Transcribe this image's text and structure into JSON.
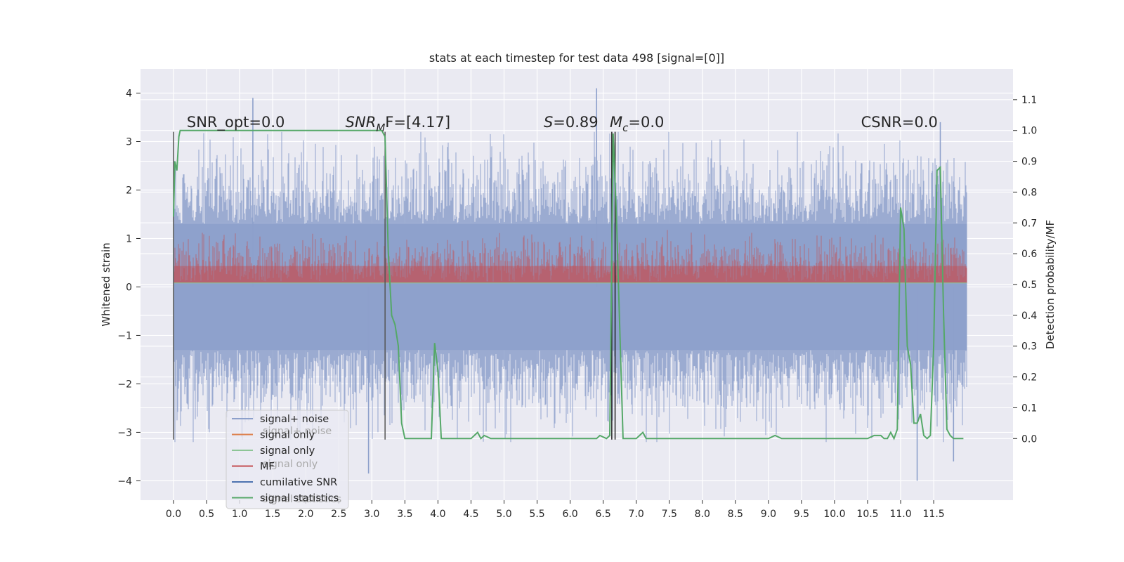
{
  "chart_data": {
    "type": "line",
    "title": "stats at each timestep for test data 498 [signal=[0]]",
    "ylabel": "Whitened strain",
    "y2label": "Detection probability/MF",
    "xlim": [
      -0.5,
      12.7
    ],
    "ylim": [
      -4.4,
      4.5
    ],
    "y2lim": [
      -0.2,
      1.2
    ],
    "x_ticks": [
      0.0,
      0.5,
      1.0,
      1.5,
      2.0,
      2.5,
      3.0,
      3.5,
      4.0,
      4.5,
      5.0,
      5.5,
      6.0,
      6.5,
      7.0,
      7.5,
      8.0,
      8.5,
      9.0,
      9.5,
      10.0,
      10.5,
      11.0,
      11.5
    ],
    "x_tick_labels": [
      "0.0",
      "0.5",
      "1.0",
      "1.5",
      "2.0",
      "2.5",
      "3.0",
      "3.5",
      "4.0",
      "4.5",
      "5.0",
      "5.5",
      "6.0",
      "6.5",
      "7.0",
      "7.5",
      "8.0",
      "8.5",
      "9.0",
      "9.5",
      "10.0",
      "10.5",
      "11.0",
      "11.5"
    ],
    "y_ticks": [
      -4,
      -3,
      -2,
      -1,
      0,
      1,
      2,
      3,
      4
    ],
    "y_tick_labels": [
      "−4",
      "−3",
      "−2",
      "−1",
      "0",
      "1",
      "2",
      "3",
      "4"
    ],
    "y2_ticks": [
      0.0,
      0.1,
      0.2,
      0.3,
      0.4,
      0.5,
      0.6,
      0.7,
      0.8,
      0.9,
      1.0,
      1.1
    ],
    "y2_tick_labels": [
      "0.0",
      "0.1",
      "0.2",
      "0.3",
      "0.4",
      "0.5",
      "0.6",
      "0.7",
      "0.8",
      "0.9",
      "1.0",
      "1.1"
    ],
    "grid": true,
    "legend_placement": "lower-left",
    "legend": [
      {
        "label": "signal+ noise",
        "color": "#8da0cb"
      },
      {
        "label": "signal only",
        "color": "#dd8452"
      },
      {
        "label": "signal only",
        "color": "#8dc596"
      },
      {
        "label": "MF",
        "color": "#c44e52"
      },
      {
        "label": "cumilative SNR",
        "color": "#4c72b0"
      },
      {
        "label": "signal statistics",
        "color": "#55a868"
      }
    ],
    "legend_ghost_labels": [
      "signal+ noise",
      "signal only",
      "signal statistics"
    ],
    "annotations": [
      {
        "text": "SNR_opt=0.0",
        "x": 0.2,
        "y": 3.3
      },
      {
        "text_main": "SNR",
        "text_sub": "M",
        "text_rest": "F=[4.17]",
        "x": 2.6,
        "y": 3.3
      },
      {
        "text_main": "S",
        "text_rest": "=0.89",
        "x": 5.6,
        "y": 3.3
      },
      {
        "text_main": "M",
        "text_sub": "c",
        "text_rest": "=0.0",
        "x": 6.6,
        "y": 3.3
      },
      {
        "text": "CSNR=0.0",
        "x": 10.4,
        "y": 3.3
      }
    ],
    "vertical_lines": [
      {
        "x": 0.0,
        "y_from": -3.15,
        "y_to": 3.2,
        "color": "#555555"
      },
      {
        "x": 3.2,
        "y_from": -3.15,
        "y_to": 3.2,
        "color": "#555555"
      },
      {
        "x": 6.63,
        "y_from": -3.15,
        "y_to": 3.2,
        "color": "#222222"
      },
      {
        "x": 6.68,
        "y_from": -3.15,
        "y_to": 3.2,
        "color": "#222222"
      }
    ],
    "series": [
      {
        "name": "signal+ noise",
        "axis": "left",
        "color": "#8da0cb",
        "x_range": [
          0.0,
          12.0
        ],
        "typical_range": [
          -2.5,
          2.5
        ],
        "spikes": [
          {
            "x": 1.2,
            "y": 3.9
          },
          {
            "x": 6.4,
            "y": 4.1
          },
          {
            "x": 11.6,
            "y": 3.4
          },
          {
            "x": 11.25,
            "y": -4.0
          },
          {
            "x": 2.95,
            "y": -3.85
          },
          {
            "x": 11.8,
            "y": -3.6
          }
        ]
      },
      {
        "name": "MF",
        "axis": "right",
        "color": "#c44e52",
        "x_range": [
          0.0,
          12.0
        ],
        "typical_range": [
          0.51,
          0.65
        ],
        "peak": 0.72
      },
      {
        "name": "signal statistics",
        "axis": "right",
        "color": "#55a868",
        "x": [
          0.0,
          0.02,
          0.05,
          0.08,
          0.1,
          0.15,
          3.15,
          3.2,
          3.25,
          3.3,
          3.35,
          3.4,
          3.45,
          3.5,
          3.6,
          3.7,
          3.8,
          3.9,
          3.95,
          4.0,
          4.05,
          4.1,
          4.5,
          4.6,
          4.65,
          4.7,
          4.8,
          6.4,
          6.45,
          6.55,
          6.6,
          6.65,
          6.7,
          6.8,
          7.0,
          7.1,
          7.15,
          7.3,
          9.0,
          9.1,
          9.2,
          10.5,
          10.6,
          10.7,
          10.75,
          10.8,
          10.85,
          10.9,
          10.95,
          11.0,
          11.05,
          11.1,
          11.15,
          11.2,
          11.25,
          11.3,
          11.35,
          11.4,
          11.45,
          11.5,
          11.55,
          11.6,
          11.65,
          11.7,
          11.75,
          11.8,
          11.9,
          11.95
        ],
        "y": [
          0.72,
          0.9,
          0.87,
          0.98,
          1.0,
          1.0,
          1.0,
          0.98,
          0.6,
          0.4,
          0.37,
          0.3,
          0.05,
          0.0,
          0.0,
          0.0,
          0.0,
          0.0,
          0.31,
          0.22,
          0.0,
          0.0,
          0.0,
          0.02,
          0.0,
          0.01,
          0.0,
          0.0,
          0.01,
          0.0,
          0.01,
          0.99,
          0.72,
          0.0,
          0.0,
          0.02,
          0.0,
          0.0,
          0.0,
          0.01,
          0.0,
          0.0,
          0.01,
          0.01,
          0.0,
          0.0,
          0.02,
          0.0,
          0.03,
          0.75,
          0.68,
          0.3,
          0.24,
          0.05,
          0.05,
          0.08,
          0.01,
          0.0,
          0.01,
          0.3,
          0.87,
          0.88,
          0.4,
          0.03,
          0.01,
          0.0,
          0.0,
          0.0
        ]
      }
    ]
  }
}
